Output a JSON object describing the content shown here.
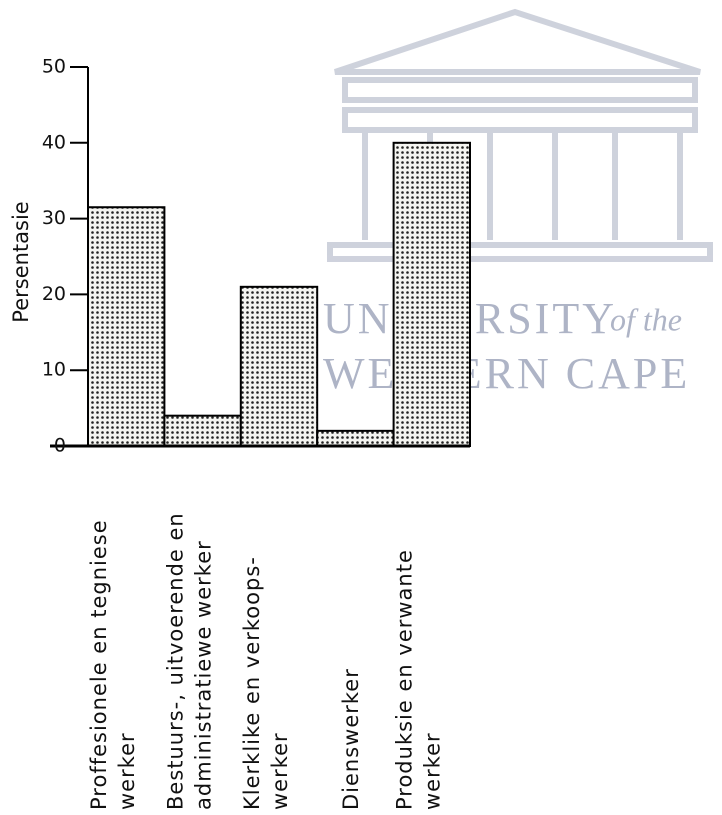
{
  "chart_data": {
    "type": "bar",
    "y_label": "Persentasie",
    "categories": [
      [
        "Proffesionele en tegniese",
        "werker"
      ],
      [
        "Bestuurs-, uitvoerende en",
        "administratiewe werker"
      ],
      [
        "Klerklike en verkoops-",
        "werker"
      ],
      [
        "Dienswerker"
      ],
      [
        "Produksie en verwante",
        "werker"
      ]
    ],
    "values": [
      31.5,
      4,
      21,
      2,
      40
    ],
    "ylim": [
      0,
      50
    ],
    "yticks": [
      0,
      10,
      20,
      30,
      40,
      50
    ],
    "color": "#000000",
    "watermark": [
      "UNIVERSITY",
      "of the",
      "WESTERN CAPE"
    ]
  }
}
